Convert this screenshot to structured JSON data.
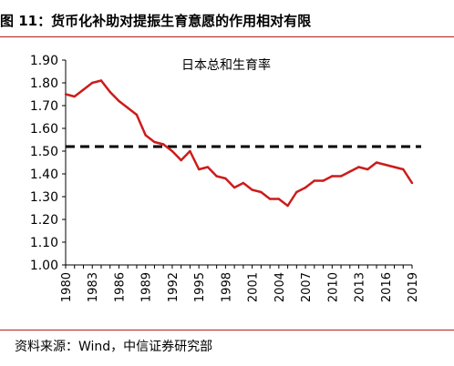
{
  "figure": {
    "title": "图 11：货币化补助对提振生育意愿的作用相对有限",
    "source": "资料来源：Wind，中信证券研究部"
  },
  "colors": {
    "accent_rule": "#b71c1c",
    "series_line": "#cc1c1c",
    "reference_line": "#000000"
  },
  "chart_data": {
    "type": "line",
    "title": "日本总和生育率",
    "xlabel": "",
    "ylabel": "",
    "x": [
      1980,
      1981,
      1982,
      1983,
      1984,
      1985,
      1986,
      1987,
      1988,
      1989,
      1990,
      1991,
      1992,
      1993,
      1994,
      1995,
      1996,
      1997,
      1998,
      1999,
      2000,
      2001,
      2002,
      2003,
      2004,
      2005,
      2006,
      2007,
      2008,
      2009,
      2010,
      2011,
      2012,
      2013,
      2014,
      2015,
      2016,
      2017,
      2018,
      2019
    ],
    "series": [
      {
        "values": [
          1.75,
          1.74,
          1.77,
          1.8,
          1.81,
          1.76,
          1.72,
          1.69,
          1.66,
          1.57,
          1.54,
          1.53,
          1.5,
          1.46,
          1.5,
          1.42,
          1.43,
          1.39,
          1.38,
          1.34,
          1.36,
          1.33,
          1.32,
          1.29,
          1.29,
          1.26,
          1.32,
          1.34,
          1.37,
          1.37,
          1.39,
          1.39,
          1.41,
          1.43,
          1.42,
          1.45,
          1.44,
          1.43,
          1.42,
          1.36
        ]
      }
    ],
    "reference_line": {
      "y": 1.52,
      "style": "dashed"
    },
    "xticks": [
      "1980",
      "1983",
      "1986",
      "1989",
      "1992",
      "1995",
      "1998",
      "2001",
      "2004",
      "2007",
      "2010",
      "2013",
      "2016",
      "2019"
    ],
    "yticks": [
      "1.00",
      "1.10",
      "1.20",
      "1.30",
      "1.40",
      "1.50",
      "1.60",
      "1.70",
      "1.80",
      "1.90"
    ],
    "ylim": [
      1.0,
      1.9
    ],
    "xlim": [
      1980,
      2019
    ],
    "grid": false,
    "legend": "none"
  }
}
